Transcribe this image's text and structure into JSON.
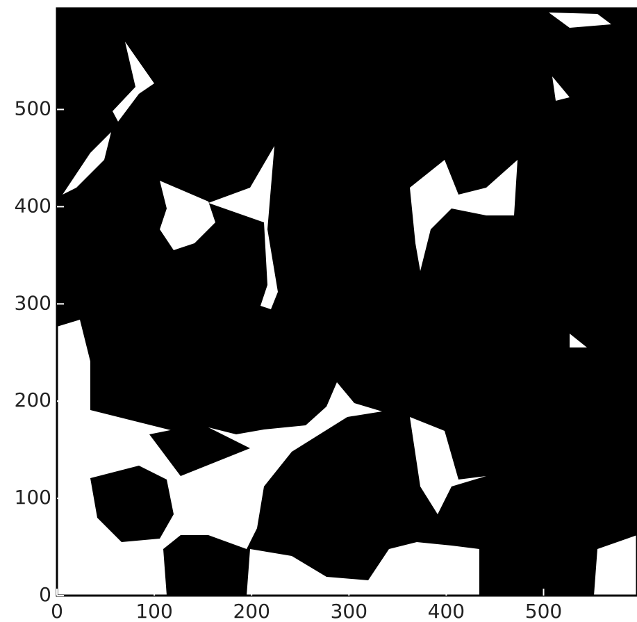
{
  "chart_data": {
    "type": "image",
    "xlim": [
      0,
      596
    ],
    "ylim": [
      0,
      604
    ],
    "xticks": [
      0,
      100,
      200,
      300,
      400,
      500
    ],
    "yticks": [
      0,
      100,
      200,
      300,
      400,
      500
    ],
    "background": "#000000",
    "foreground": "#ffffff"
  }
}
